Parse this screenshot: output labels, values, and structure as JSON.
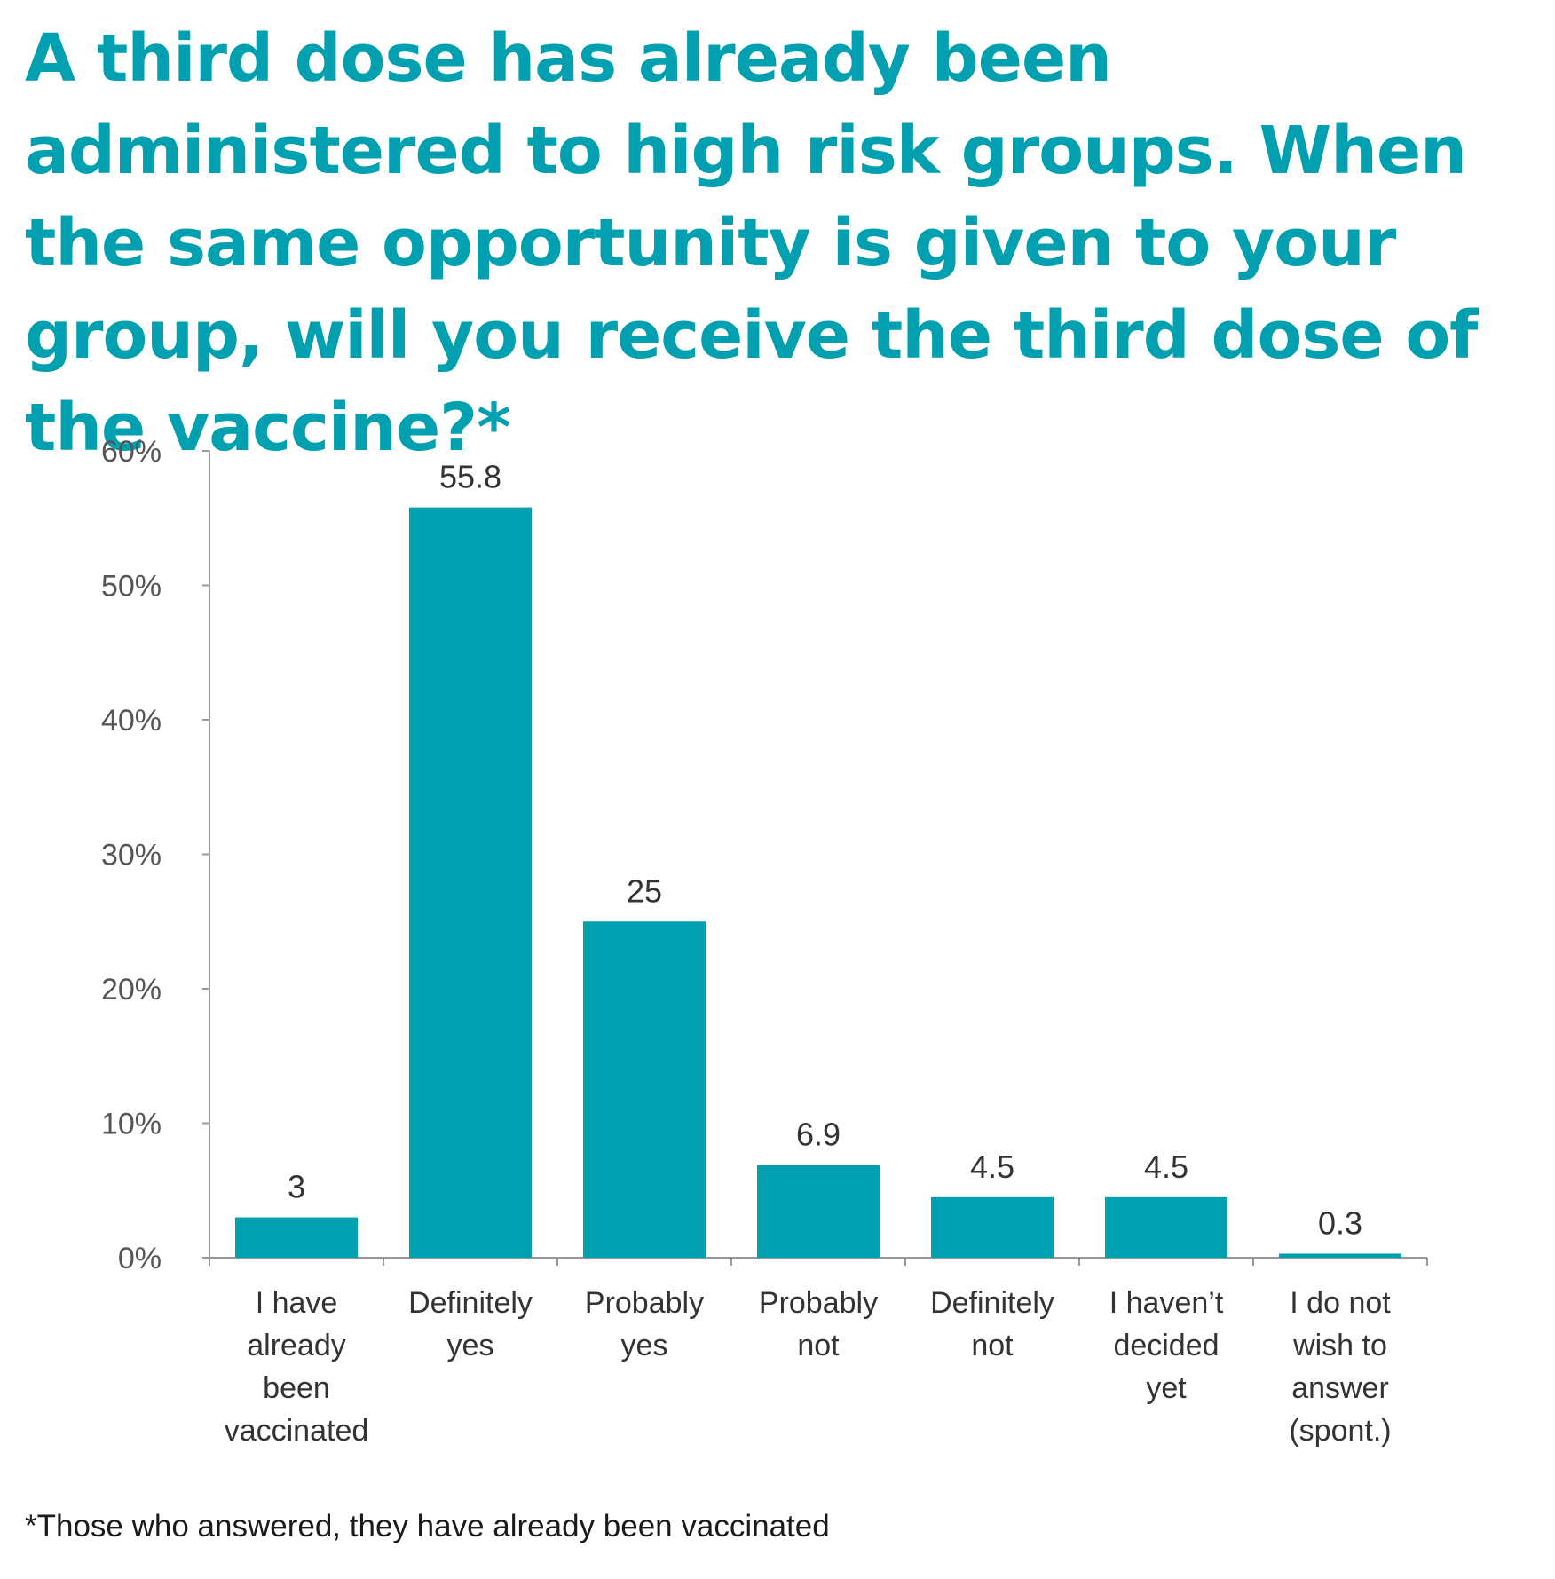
{
  "title": "A third dose has already been administered to high risk groups. When the same opportunity is given to your group, will you receive the third dose of the vaccine?*",
  "footnote": "*Those who answered, they have already been vaccinated",
  "colors": {
    "accent": "#00a0b0",
    "axis": "#999999"
  },
  "chart_data": {
    "type": "bar",
    "title": "A third dose has already been administered to high risk groups. When the same opportunity is given to your group, will you receive the third dose of the vaccine?*",
    "xlabel": "",
    "ylabel": "",
    "ylim": [
      0,
      60
    ],
    "yticks": [
      0,
      10,
      20,
      30,
      40,
      50,
      60
    ],
    "ytick_labels": [
      "0%",
      "10%",
      "20%",
      "30%",
      "40%",
      "50%",
      "60%"
    ],
    "grid": false,
    "categories": [
      "I have already been vaccinated",
      "Definitely yes",
      "Probably yes",
      "Probably not",
      "Definitely not",
      "I haven’t decided yet",
      "I do not wish to answer (spont.)"
    ],
    "category_lines": [
      [
        "I have",
        "already",
        "been",
        "vaccinated"
      ],
      [
        "Definitely",
        "yes"
      ],
      [
        "Probably",
        "yes"
      ],
      [
        "Probably",
        "not"
      ],
      [
        "Definitely",
        "not"
      ],
      [
        "I haven’t",
        "decided",
        "yet"
      ],
      [
        "I do not",
        "wish to",
        "answer",
        "(spont.)"
      ]
    ],
    "values": [
      3,
      55.8,
      25,
      6.9,
      4.5,
      4.5,
      0.3
    ],
    "value_labels": [
      "3",
      "55.8",
      "25",
      "6.9",
      "4.5",
      "4.5",
      "0.3"
    ]
  }
}
